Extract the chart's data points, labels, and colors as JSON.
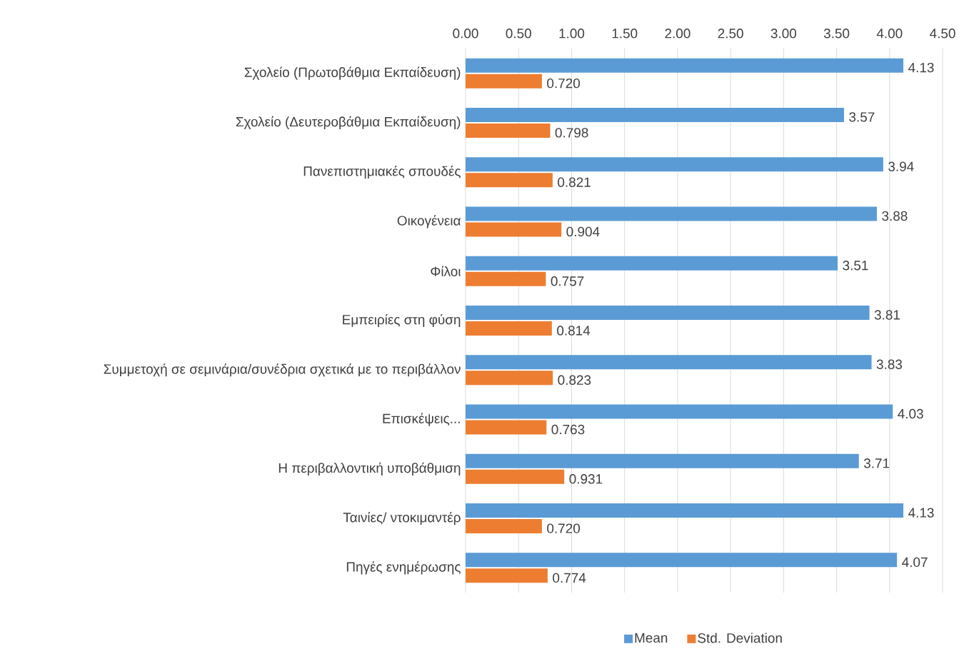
{
  "chart_data": {
    "type": "bar",
    "orientation": "horizontal",
    "categories": [
      "Σχολείο (Πρωτοβάθμια Εκπαίδευση)",
      "Σχολείο (Δευτεροβάθμια Εκπαίδευση)",
      "Πανεπιστημιακές σπουδές",
      "Οικογένεια",
      "Φίλοι",
      "Εμπειρίες στη φύση",
      "Συμμετοχή σε σεμινάρια/συνέδρια σχετικά με το περιβάλλον",
      "Επισκέψεις...",
      "Η περιβαλλοντική υποβάθμιση",
      "Ταινίες/ ντοκιμαντέρ",
      "Πηγές ενημέρωσης"
    ],
    "series": [
      {
        "name": "Mean",
        "color": "#5b9bd5",
        "values": [
          4.13,
          3.57,
          3.94,
          3.88,
          3.51,
          3.81,
          3.83,
          4.03,
          3.71,
          4.13,
          4.07
        ],
        "value_labels": [
          "4.13",
          "3.57",
          "3.94",
          "3.88",
          "3.51",
          "3.81",
          "3.83",
          "4.03",
          "3.71",
          "4.13",
          "4.07"
        ]
      },
      {
        "name": "Std. Deviation",
        "color": "#ed7d31",
        "values": [
          0.72,
          0.798,
          0.821,
          0.904,
          0.757,
          0.814,
          0.823,
          0.763,
          0.931,
          0.72,
          0.774
        ],
        "value_labels": [
          "0.720",
          "0.798",
          "0.821",
          "0.904",
          "0.757",
          "0.814",
          "0.823",
          "0.763",
          "0.931",
          "0.720",
          "0.774"
        ]
      }
    ],
    "xlim": [
      0,
      4.5
    ],
    "xticks": [
      {
        "value": 0,
        "label": "0.00"
      },
      {
        "value": 0.5,
        "label": "0.50"
      },
      {
        "value": 1,
        "label": "1.00"
      },
      {
        "value": 1.5,
        "label": "1.50"
      },
      {
        "value": 2,
        "label": "2.00"
      },
      {
        "value": 2.5,
        "label": "2.50"
      },
      {
        "value": 3,
        "label": "3.00"
      },
      {
        "value": 3.5,
        "label": "3.50"
      },
      {
        "value": 4,
        "label": "4.00"
      },
      {
        "value": 4.5,
        "label": "4.50"
      }
    ],
    "grid": "x",
    "legend": "bottom"
  }
}
